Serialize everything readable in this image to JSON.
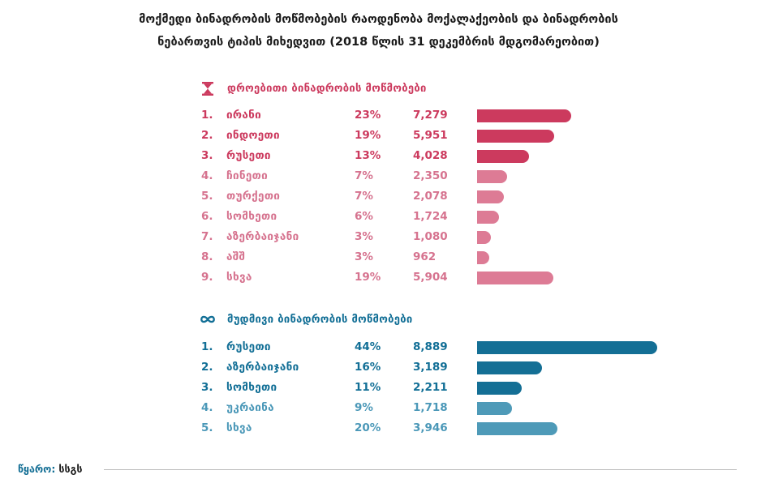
{
  "title_line1": "მოქმედი ბინადრობის მოწმობების რაოდენობა მოქალაქეობის და ბინადრობის",
  "title_line2": "ნებართვის ტიპის მიხედვით (2018 წლის 31 დეკემბრის მდგომარეობით)",
  "icons": {
    "temporary": "hourglass-icon",
    "permanent": "infinity-icon"
  },
  "colors": {
    "temporary_dark": "#cc3a5e",
    "temporary_light": "#dd7b95",
    "permanent_dark": "#146f95",
    "permanent_light": "#4e9ab8"
  },
  "source_label": "წყარო:",
  "source_value": "სსგს",
  "chart_data": [
    {
      "type": "bar",
      "orientation": "horizontal",
      "title": "დროებითი ბინადრობის მოწმობები",
      "rows": [
        {
          "rank": "1.",
          "category": "ირანი",
          "percent": "23%",
          "value": 7279,
          "value_label": "7,279"
        },
        {
          "rank": "2.",
          "category": "ინდოეთი",
          "percent": "19%",
          "value": 5951,
          "value_label": "5,951"
        },
        {
          "rank": "3.",
          "category": "რუსეთი",
          "percent": "13%",
          "value": 4028,
          "value_label": "4,028"
        },
        {
          "rank": "4.",
          "category": "ჩინეთი",
          "percent": "7%",
          "value": 2350,
          "value_label": "2,350"
        },
        {
          "rank": "5.",
          "category": "თურქეთი",
          "percent": "7%",
          "value": 2078,
          "value_label": "2,078"
        },
        {
          "rank": "6.",
          "category": "სომხეთი",
          "percent": "6%",
          "value": 1724,
          "value_label": "1,724"
        },
        {
          "rank": "7.",
          "category": "აზერბაიჯანი",
          "percent": "3%",
          "value": 1080,
          "value_label": "1,080"
        },
        {
          "rank": "8.",
          "category": "აშშ",
          "percent": "3%",
          "value": 962,
          "value_label": "962"
        },
        {
          "rank": "9.",
          "category": "სხვა",
          "percent": "19%",
          "value": 5904,
          "value_label": "5,904"
        }
      ]
    },
    {
      "type": "bar",
      "orientation": "horizontal",
      "title": "მუდმივი ბინადრობის მოწმობები",
      "rows": [
        {
          "rank": "1.",
          "category": "რუსეთი",
          "percent": "44%",
          "value": 8889,
          "value_label": "8,889"
        },
        {
          "rank": "2.",
          "category": "აზერბაიჯანი",
          "percent": "16%",
          "value": 3189,
          "value_label": "3,189"
        },
        {
          "rank": "3.",
          "category": "სომხეთი",
          "percent": "11%",
          "value": 2211,
          "value_label": "2,211"
        },
        {
          "rank": "4.",
          "category": "უკრაინა",
          "percent": "9%",
          "value": 1718,
          "value_label": "1,718"
        },
        {
          "rank": "5.",
          "category": "სხვა",
          "percent": "20%",
          "value": 3946,
          "value_label": "3,946"
        }
      ]
    }
  ]
}
